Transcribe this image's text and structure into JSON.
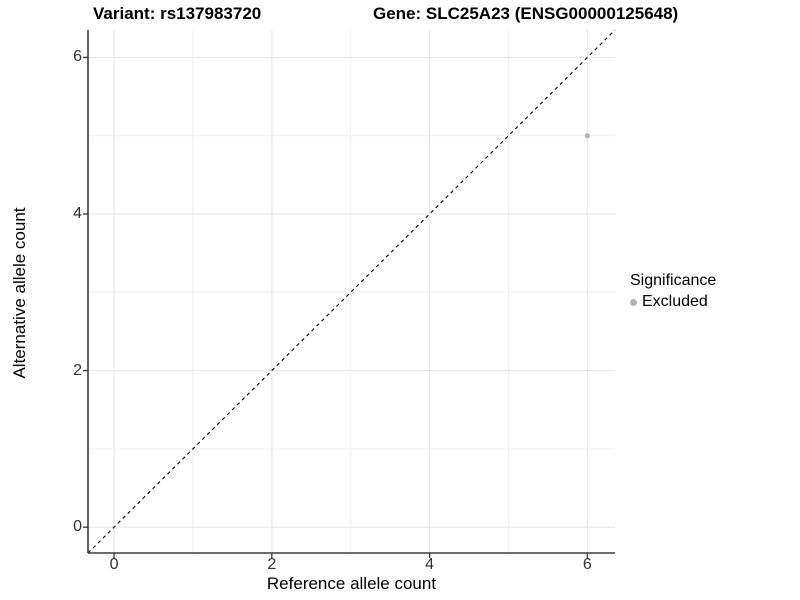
{
  "titles": {
    "variant": "Variant: rs137983720",
    "gene": "Gene: SLC25A23 (ENSG00000125648)"
  },
  "chart_data": {
    "type": "scatter",
    "title_left": "Variant: rs137983720",
    "title_right": "Gene: SLC25A23 (ENSG00000125648)",
    "xlabel": "Reference allele count",
    "ylabel": "Alternative allele count",
    "xlim": [
      -0.33,
      6.35
    ],
    "ylim": [
      -0.33,
      6.35
    ],
    "x_ticks": [
      0,
      2,
      4,
      6
    ],
    "y_ticks": [
      0,
      2,
      4,
      6
    ],
    "x_tick_labels": [
      "0",
      "2",
      "4",
      "6"
    ],
    "y_tick_labels": [
      "0",
      "2",
      "4",
      "6"
    ],
    "minor_gridlines": [
      1,
      3,
      5
    ],
    "grid": true,
    "series": [
      {
        "name": "Excluded",
        "points": [
          {
            "x": 6,
            "y": 5
          }
        ]
      }
    ],
    "reference_line": {
      "kind": "identity",
      "slope": 1,
      "intercept": 0,
      "style": "dashed"
    },
    "legend": {
      "title": "Significance",
      "entries": [
        {
          "label": "Excluded",
          "marker": "dot"
        }
      ],
      "position": "right"
    }
  },
  "colors": {
    "point": "#b3b3b3",
    "grid_major": "#e5e5e5",
    "grid_minor": "#f0f0f0",
    "axis": "#3c3c3c",
    "dashed_line": "#000000",
    "background": "#ffffff"
  }
}
